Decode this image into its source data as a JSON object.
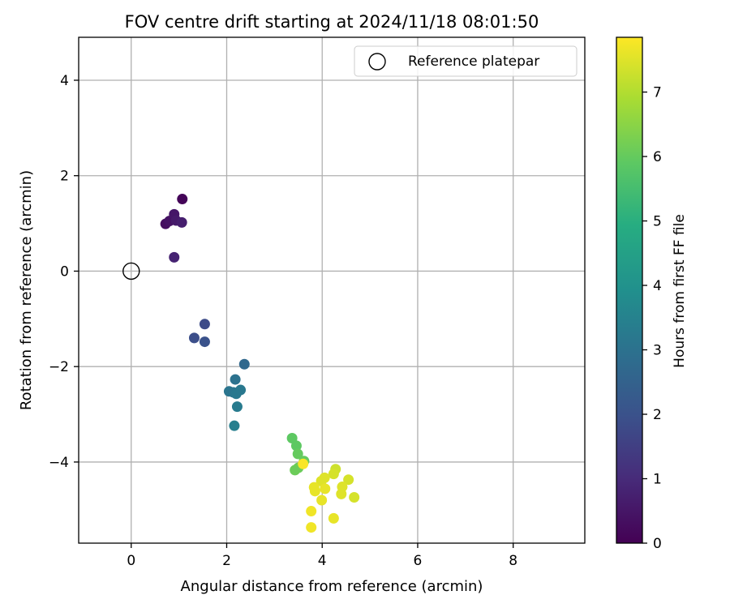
{
  "chart_data": {
    "type": "scatter",
    "title": "FOV centre drift starting at 2024/11/18 08:01:50",
    "xlabel": "Angular distance from reference (arcmin)",
    "ylabel": "Rotation from reference (arcmin)",
    "xlim": [
      -1.1,
      9.5
    ],
    "ylim": [
      -5.7,
      4.9
    ],
    "xticks": [
      0,
      2,
      4,
      6,
      8
    ],
    "yticks": [
      -4,
      -2,
      0,
      2,
      4
    ],
    "grid": true,
    "legend": {
      "placement": "top-right",
      "entries": [
        "Reference platepar"
      ]
    },
    "reference": {
      "x": 0,
      "y": 0
    },
    "colorbar": {
      "label": "Hours from first FF file",
      "min": 0,
      "max": 7.85,
      "ticks": [
        0,
        1,
        2,
        3,
        4,
        5,
        6,
        7
      ],
      "colormap": "viridis"
    },
    "points": [
      {
        "x": 1.07,
        "y": 1.51,
        "h": 0.1
      },
      {
        "x": 0.72,
        "y": 0.99,
        "h": 0.3
      },
      {
        "x": 0.8,
        "y": 1.05,
        "h": 0.4
      },
      {
        "x": 0.9,
        "y": 1.19,
        "h": 0.5
      },
      {
        "x": 0.94,
        "y": 1.06,
        "h": 0.6
      },
      {
        "x": 1.06,
        "y": 1.02,
        "h": 0.7
      },
      {
        "x": 0.9,
        "y": 0.29,
        "h": 0.8
      },
      {
        "x": 1.54,
        "y": -1.11,
        "h": 1.8
      },
      {
        "x": 1.32,
        "y": -1.4,
        "h": 1.9
      },
      {
        "x": 1.54,
        "y": -1.48,
        "h": 2.0
      },
      {
        "x": 2.37,
        "y": -1.95,
        "h": 2.7
      },
      {
        "x": 2.18,
        "y": -2.27,
        "h": 3.0
      },
      {
        "x": 2.05,
        "y": -2.52,
        "h": 3.1
      },
      {
        "x": 2.14,
        "y": -2.54,
        "h": 3.1
      },
      {
        "x": 2.2,
        "y": -2.57,
        "h": 3.2
      },
      {
        "x": 2.29,
        "y": -2.49,
        "h": 3.2
      },
      {
        "x": 2.22,
        "y": -2.84,
        "h": 3.3
      },
      {
        "x": 2.16,
        "y": -3.24,
        "h": 3.4
      },
      {
        "x": 3.37,
        "y": -3.5,
        "h": 5.9
      },
      {
        "x": 3.46,
        "y": -3.66,
        "h": 5.9
      },
      {
        "x": 3.49,
        "y": -3.83,
        "h": 6.0
      },
      {
        "x": 3.62,
        "y": -3.98,
        "h": 6.0
      },
      {
        "x": 3.43,
        "y": -4.17,
        "h": 6.1
      },
      {
        "x": 3.5,
        "y": -4.12,
        "h": 6.1
      },
      {
        "x": 3.6,
        "y": -4.04,
        "h": 7.8
      },
      {
        "x": 4.28,
        "y": -4.15,
        "h": 7.3
      },
      {
        "x": 4.24,
        "y": -4.25,
        "h": 7.4
      },
      {
        "x": 4.05,
        "y": -4.33,
        "h": 7.5
      },
      {
        "x": 3.98,
        "y": -4.4,
        "h": 7.5
      },
      {
        "x": 4.55,
        "y": -4.37,
        "h": 7.4
      },
      {
        "x": 3.83,
        "y": -4.53,
        "h": 7.6
      },
      {
        "x": 3.85,
        "y": -4.61,
        "h": 7.6
      },
      {
        "x": 4.06,
        "y": -4.56,
        "h": 7.6
      },
      {
        "x": 4.42,
        "y": -4.52,
        "h": 7.5
      },
      {
        "x": 4.4,
        "y": -4.67,
        "h": 7.5
      },
      {
        "x": 4.67,
        "y": -4.74,
        "h": 7.4
      },
      {
        "x": 3.99,
        "y": -4.8,
        "h": 7.6
      },
      {
        "x": 3.77,
        "y": -5.03,
        "h": 7.7
      },
      {
        "x": 4.24,
        "y": -5.18,
        "h": 7.6
      },
      {
        "x": 3.77,
        "y": -5.37,
        "h": 7.7
      }
    ]
  }
}
